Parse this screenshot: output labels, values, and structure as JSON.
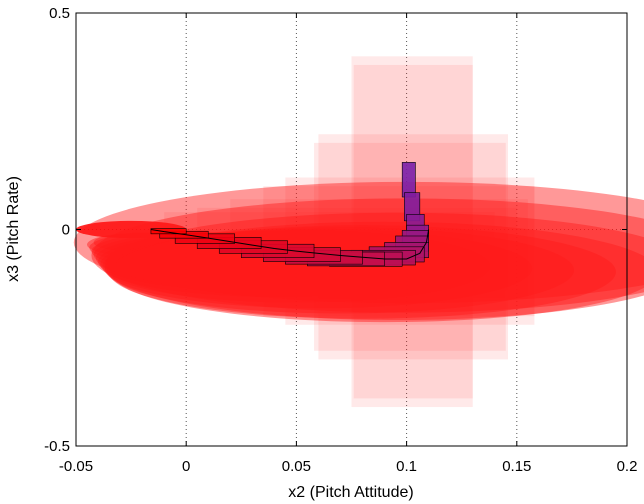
{
  "chart_data": {
    "type": "scatter",
    "title": "",
    "xlabel": "x2 (Pitch Attitude)",
    "ylabel": "x3 (Pitch Rate)",
    "xlim": [
      -0.05,
      0.2
    ],
    "ylim": [
      -0.5,
      0.5
    ],
    "grid": true,
    "grid_style": "dotted",
    "xticks": [
      -0.05,
      0,
      0.05,
      0.1,
      0.15,
      0.2
    ],
    "xtick_labels": [
      "-0.05",
      "0",
      "0.05",
      "0.1",
      "0.15",
      "0.2"
    ],
    "yticks": [
      -0.5,
      0,
      0.5
    ],
    "ytick_labels": [
      "-0.5",
      "0",
      "0.5"
    ],
    "colors": {
      "outer_sets": "#ff2a2a",
      "inner_boxes_start": "#ff0000",
      "inner_boxes_end": "#7a1fa8",
      "box_edge": "#000000"
    },
    "reach_boxes": [
      {
        "x": [
          0.075,
          0.13
        ],
        "y": [
          -0.41,
          0.4
        ]
      },
      {
        "x": [
          0.076,
          0.13
        ],
        "y": [
          -0.39,
          0.38
        ]
      },
      {
        "x": [
          0.06,
          0.146
        ],
        "y": [
          -0.3,
          0.22
        ]
      },
      {
        "x": [
          0.058,
          0.145
        ],
        "y": [
          -0.28,
          0.2
        ]
      },
      {
        "x": [
          0.045,
          0.158
        ],
        "y": [
          -0.22,
          0.12
        ]
      },
      {
        "x": [
          0.035,
          0.158
        ],
        "y": [
          -0.2,
          0.1
        ]
      },
      {
        "x": [
          0.02,
          0.155
        ],
        "y": [
          -0.16,
          0.07
        ]
      },
      {
        "x": [
          0.005,
          0.15
        ],
        "y": [
          -0.14,
          0.05
        ]
      },
      {
        "x": [
          -0.01,
          0.14
        ],
        "y": [
          -0.12,
          0.04
        ]
      }
    ],
    "trajectory": [
      {
        "x": -0.016,
        "y": 0.0
      },
      {
        "x": -0.01,
        "y": -0.005
      },
      {
        "x": 0.0,
        "y": -0.012
      },
      {
        "x": 0.01,
        "y": -0.02
      },
      {
        "x": 0.02,
        "y": -0.028
      },
      {
        "x": 0.03,
        "y": -0.036
      },
      {
        "x": 0.04,
        "y": -0.044
      },
      {
        "x": 0.05,
        "y": -0.05
      },
      {
        "x": 0.06,
        "y": -0.055
      },
      {
        "x": 0.07,
        "y": -0.06
      },
      {
        "x": 0.08,
        "y": -0.064
      },
      {
        "x": 0.09,
        "y": -0.068
      },
      {
        "x": 0.1,
        "y": -0.068
      },
      {
        "x": 0.106,
        "y": -0.055
      },
      {
        "x": 0.109,
        "y": -0.03
      },
      {
        "x": 0.11,
        "y": 0.0
      }
    ],
    "inner_boxes": [
      {
        "x": [
          0.098,
          0.104
        ],
        "y": [
          0.075,
          0.155
        ]
      },
      {
        "x": [
          0.099,
          0.106
        ],
        "y": [
          0.02,
          0.085
        ]
      },
      {
        "x": [
          0.1,
          0.108
        ],
        "y": [
          -0.005,
          0.035
        ]
      },
      {
        "x": [
          0.1,
          0.11
        ],
        "y": [
          -0.018,
          0.01
        ]
      },
      {
        "x": [
          0.098,
          0.11
        ],
        "y": [
          -0.035,
          -0.002
        ]
      },
      {
        "x": [
          0.095,
          0.11
        ],
        "y": [
          -0.05,
          -0.015
        ]
      },
      {
        "x": [
          0.09,
          0.11
        ],
        "y": [
          -0.065,
          -0.03
        ]
      },
      {
        "x": [
          0.083,
          0.108
        ],
        "y": [
          -0.075,
          -0.04
        ]
      },
      {
        "x": [
          0.075,
          0.104
        ],
        "y": [
          -0.082,
          -0.048
        ]
      },
      {
        "x": [
          0.065,
          0.098
        ],
        "y": [
          -0.085,
          -0.052
        ]
      },
      {
        "x": [
          0.055,
          0.09
        ],
        "y": [
          -0.084,
          -0.052
        ]
      },
      {
        "x": [
          0.045,
          0.08
        ],
        "y": [
          -0.08,
          -0.048
        ]
      },
      {
        "x": [
          0.035,
          0.07
        ],
        "y": [
          -0.074,
          -0.042
        ]
      },
      {
        "x": [
          0.025,
          0.058
        ],
        "y": [
          -0.065,
          -0.034
        ]
      },
      {
        "x": [
          0.015,
          0.046
        ],
        "y": [
          -0.055,
          -0.026
        ]
      },
      {
        "x": [
          0.005,
          0.034
        ],
        "y": [
          -0.044,
          -0.018
        ]
      },
      {
        "x": [
          -0.005,
          0.022
        ],
        "y": [
          -0.032,
          -0.01
        ]
      },
      {
        "x": [
          -0.012,
          0.01
        ],
        "y": [
          -0.02,
          -0.004
        ]
      },
      {
        "x": [
          -0.016,
          0.0
        ],
        "y": [
          -0.01,
          0.002
        ]
      }
    ]
  }
}
